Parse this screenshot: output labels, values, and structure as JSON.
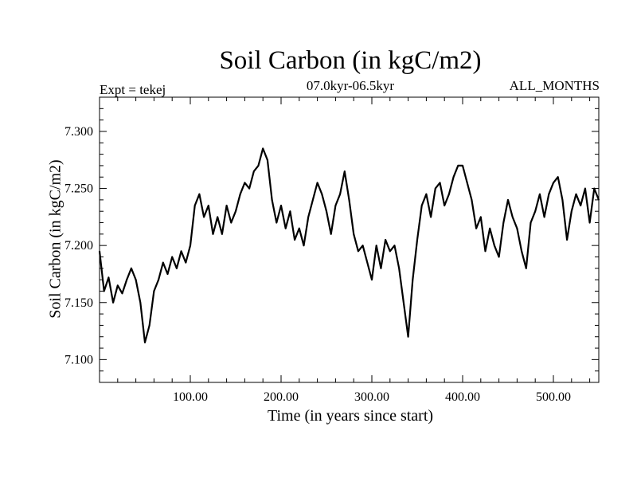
{
  "chart_data": {
    "type": "line",
    "title": "Soil Carbon (in kgC/m2)",
    "subtitle": "07.0kyr-06.5kyr",
    "experiment_label": "Expt = tekej",
    "months_label": "ALL_MONTHS",
    "xlabel": "Time (in years since start)",
    "ylabel": "Soil Carbon (in kgC/m2)",
    "xlim": [
      0,
      550
    ],
    "ylim": [
      7.08,
      7.33
    ],
    "xticks": [
      100,
      200,
      300,
      400,
      500
    ],
    "xtick_labels": [
      "100.00",
      "200.00",
      "300.00",
      "400.00",
      "500.00"
    ],
    "yticks": [
      7.1,
      7.15,
      7.2,
      7.25,
      7.3
    ],
    "ytick_labels": [
      "7.100",
      "7.150",
      "7.200",
      "7.250",
      "7.300"
    ],
    "series": [
      {
        "name": "Soil Carbon",
        "color": "#000000",
        "x": [
          0,
          5,
          10,
          15,
          20,
          25,
          30,
          35,
          40,
          45,
          50,
          55,
          60,
          65,
          70,
          75,
          80,
          85,
          90,
          95,
          100,
          105,
          110,
          115,
          120,
          125,
          130,
          135,
          140,
          145,
          150,
          155,
          160,
          165,
          170,
          175,
          180,
          185,
          190,
          195,
          200,
          205,
          210,
          215,
          220,
          225,
          230,
          235,
          240,
          245,
          250,
          255,
          260,
          265,
          270,
          275,
          280,
          285,
          290,
          295,
          300,
          305,
          310,
          315,
          320,
          325,
          330,
          335,
          340,
          345,
          350,
          355,
          360,
          365,
          370,
          375,
          380,
          385,
          390,
          395,
          400,
          405,
          410,
          415,
          420,
          425,
          430,
          435,
          440,
          445,
          450,
          455,
          460,
          465,
          470,
          475,
          480,
          485,
          490,
          495,
          500,
          505,
          510,
          515,
          520,
          525,
          530,
          535,
          540,
          545,
          550
        ],
        "values": [
          7.195,
          7.16,
          7.172,
          7.15,
          7.165,
          7.158,
          7.17,
          7.18,
          7.17,
          7.15,
          7.115,
          7.13,
          7.16,
          7.17,
          7.185,
          7.175,
          7.19,
          7.18,
          7.195,
          7.185,
          7.2,
          7.235,
          7.245,
          7.225,
          7.235,
          7.21,
          7.225,
          7.21,
          7.235,
          7.22,
          7.23,
          7.245,
          7.255,
          7.25,
          7.265,
          7.27,
          7.285,
          7.275,
          7.24,
          7.22,
          7.235,
          7.215,
          7.23,
          7.205,
          7.215,
          7.2,
          7.225,
          7.24,
          7.255,
          7.245,
          7.23,
          7.21,
          7.235,
          7.245,
          7.265,
          7.24,
          7.21,
          7.195,
          7.2,
          7.185,
          7.17,
          7.2,
          7.18,
          7.205,
          7.195,
          7.2,
          7.18,
          7.15,
          7.12,
          7.17,
          7.205,
          7.235,
          7.245,
          7.225,
          7.25,
          7.255,
          7.235,
          7.245,
          7.26,
          7.27,
          7.27,
          7.255,
          7.24,
          7.215,
          7.225,
          7.195,
          7.215,
          7.2,
          7.19,
          7.22,
          7.24,
          7.225,
          7.215,
          7.195,
          7.18,
          7.22,
          7.23,
          7.245,
          7.225,
          7.245,
          7.255,
          7.26,
          7.24,
          7.205,
          7.23,
          7.245,
          7.235,
          7.25,
          7.22,
          7.25,
          7.24
        ]
      }
    ]
  }
}
